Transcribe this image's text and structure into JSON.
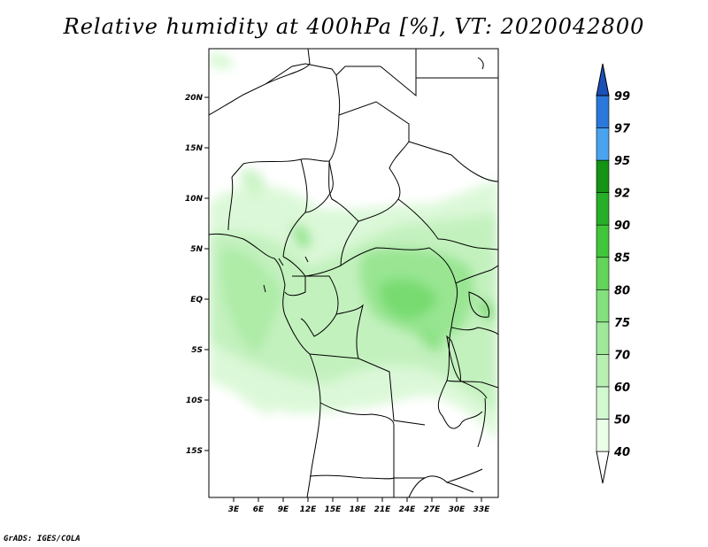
{
  "title": "Relative humidity at 400hPa [%], VT: 2020042800",
  "credit": "GrADS: IGES/COLA",
  "map": {
    "lat_labels": [
      "20N",
      "15N",
      "10N",
      "5N",
      "EQ",
      "5S",
      "10S",
      "15S"
    ],
    "lon_labels": [
      "3E",
      "6E",
      "9E",
      "12E",
      "15E",
      "18E",
      "21E",
      "24E",
      "27E",
      "30E",
      "33E"
    ],
    "lon_range": [
      0,
      35
    ],
    "lat_range": [
      -20,
      24
    ]
  },
  "colorbar": {
    "levels": [
      "40",
      "50",
      "60",
      "70",
      "75",
      "80",
      "85",
      "90",
      "92",
      "95",
      "97",
      "99"
    ],
    "colors": [
      "#ffffff",
      "#eaffe8",
      "#d2f8cf",
      "#b8f0b4",
      "#a0e99a",
      "#84e07c",
      "#62d45a",
      "#41c63b",
      "#28af29",
      "#149314",
      "#4aa3ee",
      "#2b78dc",
      "#1a50b8"
    ]
  },
  "palette": {
    "land_border": "#000000",
    "humidity_light": "#d2f8cf",
    "humidity_mid": "#a0e99a",
    "humidity_high": "#62d45a"
  }
}
